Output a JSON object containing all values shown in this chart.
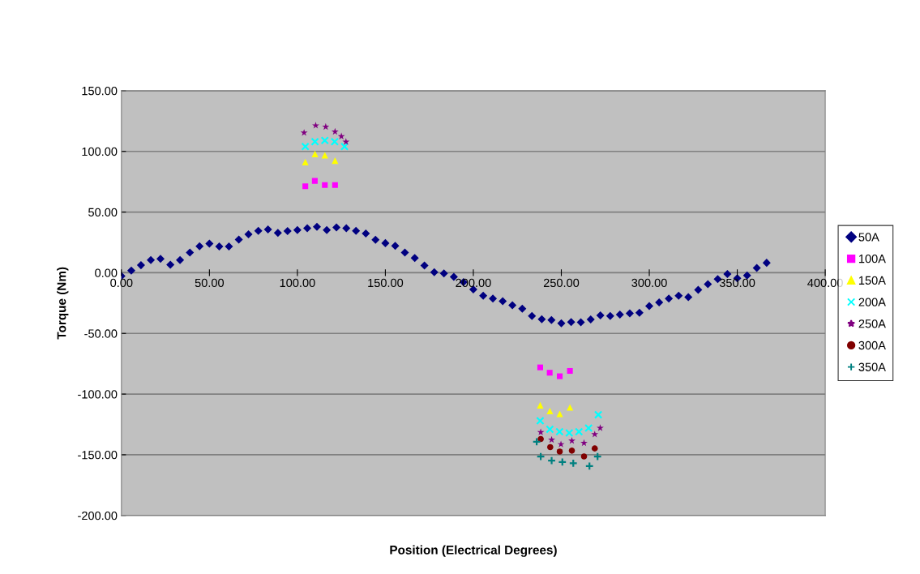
{
  "chart_data": {
    "type": "scatter",
    "xlabel": "Position (Electrical Degrees)",
    "ylabel": "Torque (Nm)",
    "xlim": [
      0,
      400
    ],
    "ylim": [
      -200,
      150
    ],
    "xticks": [
      {
        "value": 0,
        "label": "0.00"
      },
      {
        "value": 50,
        "label": "50.00"
      },
      {
        "value": 100,
        "label": "100.00"
      },
      {
        "value": 150,
        "label": "150.00"
      },
      {
        "value": 200,
        "label": "200.00"
      },
      {
        "value": 250,
        "label": "250.00"
      },
      {
        "value": 300,
        "label": "300.00"
      },
      {
        "value": 350,
        "label": "350.00"
      },
      {
        "value": 400,
        "label": "400.00"
      }
    ],
    "yticks": [
      {
        "value": -200,
        "label": "-200.00"
      },
      {
        "value": -150,
        "label": "-150.00"
      },
      {
        "value": -100,
        "label": "-100.00"
      },
      {
        "value": -50,
        "label": "-50.00"
      },
      {
        "value": 0,
        "label": "0.00"
      },
      {
        "value": 50,
        "label": "50.00"
      },
      {
        "value": 100,
        "label": "100.00"
      },
      {
        "value": 150,
        "label": "150.00"
      }
    ],
    "grid": "y",
    "legend": "right",
    "series": [
      {
        "name": "50A",
        "color": "#000080",
        "marker": "diamond",
        "x": [
          0,
          5.6,
          11.1,
          16.7,
          22.2,
          27.8,
          33.3,
          38.9,
          44.4,
          50,
          55.6,
          61.1,
          66.7,
          72.2,
          77.8,
          83.3,
          88.9,
          94.4,
          100,
          105.6,
          111.1,
          116.7,
          122.2,
          127.8,
          133.3,
          138.9,
          144.4,
          150,
          155.6,
          161.1,
          166.7,
          172.2,
          177.8,
          183.3,
          188.9,
          194.4,
          200,
          205.6,
          211.1,
          216.7,
          222.2,
          227.8,
          233.3,
          238.9,
          244.4,
          250,
          255.6,
          261.1,
          266.7,
          272.2,
          277.8,
          283.3,
          288.9,
          294.4,
          300,
          305.6,
          311.1,
          316.7,
          322.2,
          327.8,
          333.3,
          338.9,
          344.4,
          350,
          355.6,
          361.1,
          366.7
        ],
        "values": [
          -2.7,
          1.7,
          6.2,
          10.4,
          11.5,
          6.6,
          10.4,
          16.6,
          21.8,
          24,
          21.6,
          21.6,
          27.3,
          31.6,
          34.5,
          35.6,
          32.9,
          34.3,
          35.1,
          36.7,
          37.8,
          35.1,
          37.3,
          36.7,
          34.5,
          32.3,
          27.1,
          24.4,
          22.2,
          16.6,
          12.2,
          6,
          0.4,
          -0.5,
          -3.4,
          -7.8,
          -13.8,
          -19,
          -21.2,
          -23.4,
          -26.8,
          -29.7,
          -35.7,
          -38.3,
          -39,
          -41.7,
          -40.6,
          -40.8,
          -38.5,
          -35.2,
          -35.6,
          -34.5,
          -33.5,
          -33,
          -27.4,
          -24.5,
          -21.2,
          -19,
          -20.1,
          -14.1,
          -9.4,
          -5.2,
          -1.1,
          -4.5,
          -2.3,
          4,
          8.2
        ]
      },
      {
        "name": "100A",
        "color": "#ff00ff",
        "marker": "square",
        "x": [
          104.5,
          109.9,
          115.6,
          121.4,
          238,
          243.4,
          249.1,
          254.9
        ],
        "values": [
          71.2,
          75.7,
          72.3,
          72.3,
          -78,
          -82.4,
          -85.3,
          -80.9
        ]
      },
      {
        "name": "150A",
        "color": "#ffff00",
        "marker": "triangle",
        "x": [
          104.5,
          110,
          115.6,
          121.4,
          238,
          243.5,
          249.1,
          254.9
        ],
        "values": [
          91.2,
          97.9,
          96.8,
          92.4,
          -109.2,
          -114,
          -116.3,
          -111
        ]
      },
      {
        "name": "200A",
        "color": "#00ffff",
        "marker": "cross",
        "x": [
          104.5,
          110,
          115.6,
          121.2,
          126.8,
          238,
          243.5,
          249,
          254.5,
          260,
          265.5,
          271
        ],
        "values": [
          104,
          108,
          109,
          108,
          104,
          -122,
          -129,
          -131,
          -132,
          -131,
          -128,
          -117
        ]
      },
      {
        "name": "250A",
        "color": "#800080",
        "marker": "star",
        "x": [
          103.8,
          110.4,
          116.1,
          121.4,
          125,
          127.6,
          238.3,
          244.5,
          249.8,
          256,
          262.9,
          269,
          272.1
        ],
        "values": [
          115.3,
          121.3,
          120.2,
          116.2,
          112.4,
          107.9,
          -131.4,
          -137.7,
          -141.4,
          -138.5,
          -140.3,
          -133.2,
          -128
        ]
      },
      {
        "name": "300A",
        "color": "#800000",
        "marker": "circle",
        "x": [
          238.3,
          243.7,
          249.1,
          256,
          262.9,
          269
        ],
        "values": [
          -137,
          -143.7,
          -147.4,
          -146.6,
          -151.4,
          -144.8
        ]
      },
      {
        "name": "350A",
        "color": "#008080",
        "marker": "plus",
        "x": [
          236,
          238.3,
          244.5,
          250.6,
          256.8,
          266,
          270.6
        ],
        "values": [
          -139.2,
          -151.4,
          -154.8,
          -155.9,
          -157,
          -159.3,
          -151.4
        ]
      }
    ]
  }
}
